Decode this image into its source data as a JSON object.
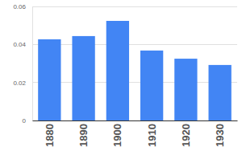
{
  "chart_data": {
    "type": "bar",
    "categories": [
      "1880",
      "1890",
      "1900",
      "1910",
      "1920",
      "1930"
    ],
    "values": [
      0.0427,
      0.0444,
      0.0524,
      0.0368,
      0.0325,
      0.0292
    ],
    "color": "#4285f4",
    "ylim": [
      0,
      0.06
    ],
    "yticks": [
      0,
      0.02,
      0.04,
      0.06
    ],
    "grid": true
  }
}
